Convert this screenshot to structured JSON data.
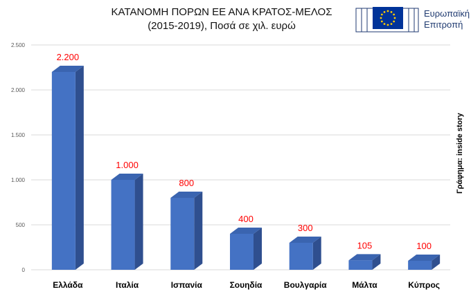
{
  "title": {
    "line1": "ΚΑΤΑΝΟΜΗ ΠΟΡΩΝ ΕΕ ΑΝΑ ΚΡΑΤΟΣ-ΜΕΛΟΣ",
    "line2": "(2015-2019), Ποσά σε χιλ. ευρώ"
  },
  "logo": {
    "line1": "Ευρωπαϊκή",
    "line2": "Επιτροπή",
    "flag_color": "#003399",
    "star_color": "#ffcc00"
  },
  "credit": "Γράφημα: inside story",
  "colors": {
    "bar_front": "#4472c4",
    "bar_side": "#2f4f8f",
    "bar_top": "#3a64b0",
    "data_label": "#ff0000",
    "grid": "#d9d9d9"
  },
  "chart_data": {
    "type": "bar",
    "categories": [
      "Ελλάδα",
      "Ιταλία",
      "Ισπανία",
      "Σουηδία",
      "Βουλγαρία",
      "Μάλτα",
      "Κύπρος"
    ],
    "values": [
      2200,
      1000,
      800,
      400,
      300,
      105,
      100
    ],
    "data_labels": [
      "2.200",
      "1.000",
      "800",
      "400",
      "300",
      "105",
      "100"
    ],
    "ylim": [
      0,
      2500
    ],
    "yticks": [
      0,
      500,
      1000,
      1500,
      2000,
      2500
    ],
    "ytick_labels": [
      "0",
      "500",
      "1.000",
      "1.500",
      "2.000",
      "2.500"
    ],
    "grid": true,
    "style": "3d-column"
  }
}
